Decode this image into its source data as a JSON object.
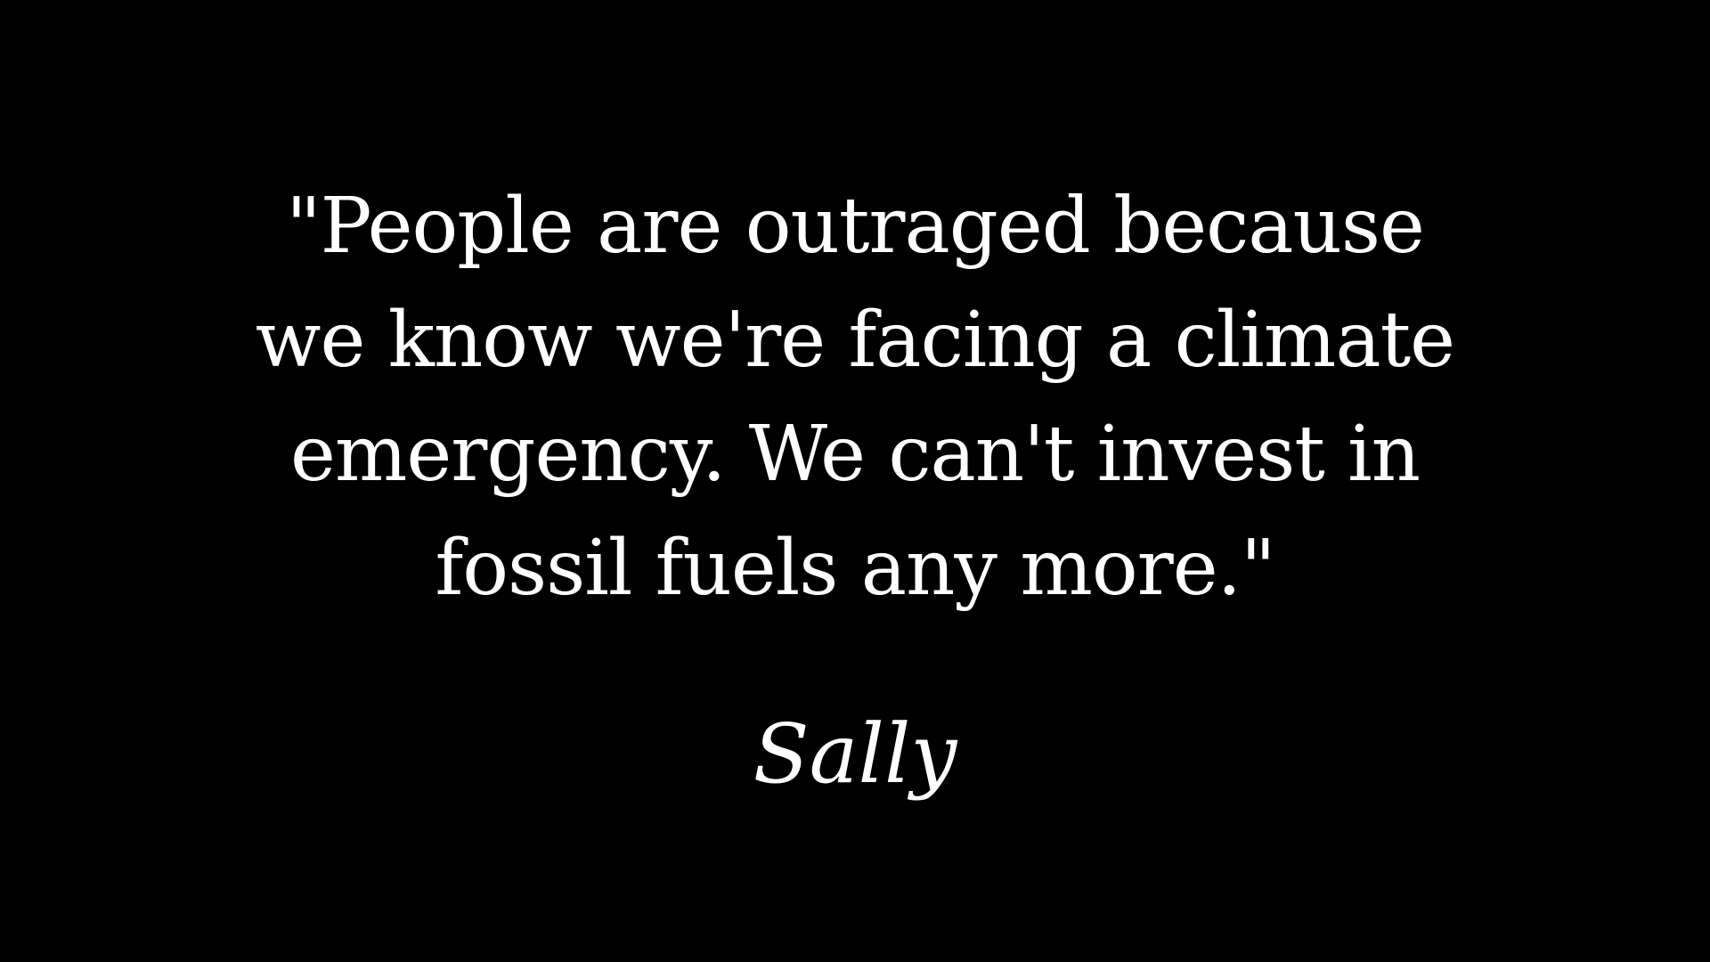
{
  "slide": {
    "background_color": "#000000",
    "text_color": "#ffffff",
    "quote_lines": [
      "\"People are outraged because",
      "we know we're facing a climate",
      "emergency. We can't invest in",
      "fossil fuels any more.\""
    ],
    "author": "Sally"
  }
}
